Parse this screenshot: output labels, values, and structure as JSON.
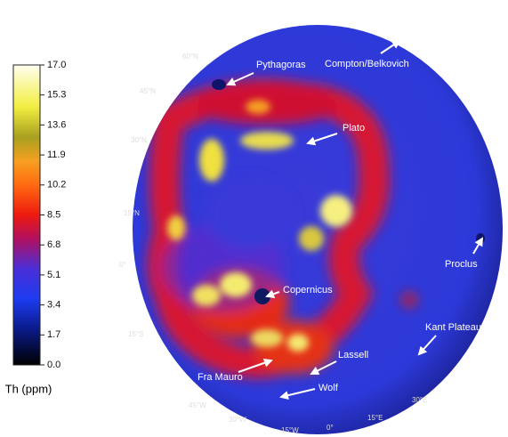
{
  "colorbar": {
    "title": "Th (ppm)",
    "range": [
      0,
      17
    ],
    "ticks": [
      {
        "value": 17,
        "label": "17.0"
      },
      15.3,
      13.6,
      11.9,
      10.2,
      8.5,
      6.8,
      5.1,
      3.4,
      1.7,
      {
        "value": 0,
        "label": "0.0"
      }
    ]
  },
  "map": {
    "latitude_labels": [
      "60°N",
      "45°N",
      "30°N",
      "15°N",
      "0°",
      "15°S"
    ],
    "longitude_labels": [
      "45°W",
      "30°W",
      "15°W",
      "0°",
      "15°E",
      "30°E"
    ],
    "features": [
      "Pythagoras",
      "Compton/Belkovich",
      "Plato",
      "Proclus",
      "Copernicus",
      "Kant Plateau",
      "Lassell",
      "Fra Mauro",
      "Wolf"
    ]
  }
}
